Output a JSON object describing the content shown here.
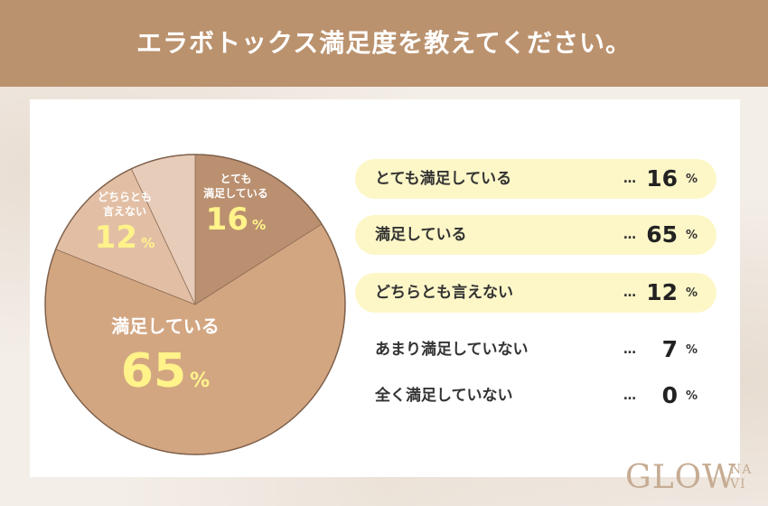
{
  "header": {
    "title": "エラボトックス満足度を教えてください。"
  },
  "chart_data": {
    "type": "pie",
    "unit": "%",
    "categories": [
      "とても満足している",
      "満足している",
      "どちらとも言えない",
      "あまり満足していない",
      "全く満足していない"
    ],
    "values": [
      16,
      65,
      12,
      7,
      0
    ],
    "colors": [
      "#ba9070",
      "#d3a682",
      "#e2bfa4",
      "#e8ccba",
      "#efdccd"
    ],
    "slice_labels": [
      {
        "lines": [
          "とても",
          "満足している"
        ],
        "value": "16"
      },
      {
        "lines": [
          "満足している"
        ],
        "value": "65"
      },
      {
        "lines": [
          "どちらとも",
          "言えない"
        ],
        "value": "12"
      }
    ]
  },
  "legend": [
    {
      "label": "とても満足している",
      "dots": "…",
      "value": "16",
      "unit": "%",
      "highlight": true
    },
    {
      "label": "満足している",
      "dots": "…",
      "value": "65",
      "unit": "%",
      "highlight": true
    },
    {
      "label": "どちらとも言えない",
      "dots": "…",
      "value": "12",
      "unit": "%",
      "highlight": true
    },
    {
      "label": "あまり満足していない",
      "dots": "…",
      "value": "7",
      "unit": "%",
      "highlight": false
    },
    {
      "label": "全く満足していない",
      "dots": "…",
      "value": "0",
      "unit": "%",
      "highlight": false
    }
  ],
  "logo": {
    "main": "GLOW",
    "sub_top": "NA",
    "sub_bottom": "VI"
  }
}
